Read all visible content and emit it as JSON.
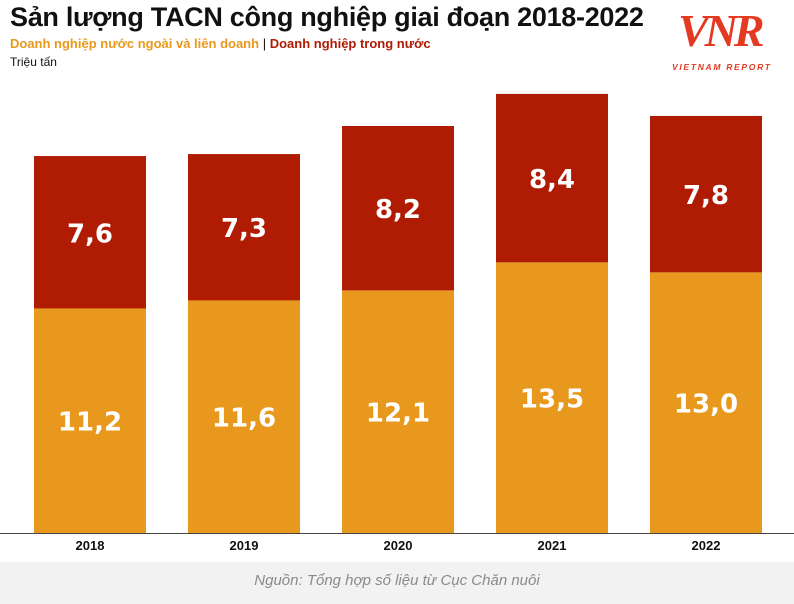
{
  "header": {
    "title": "Sản lượng TACN công nghiệp giai đoạn 2018-2022",
    "unit": "Triệu tấn"
  },
  "logo": {
    "mark": "VNR",
    "sub": "VIETNAM REPORT"
  },
  "colors": {
    "foreign": "#e8981d",
    "domestic": "#b01b04",
    "title": "#111111",
    "axis": "#444444"
  },
  "chart_data": {
    "type": "bar",
    "stacked": true,
    "title": "Sản lượng TACN công nghiệp giai đoạn 2018-2022",
    "ylabel": "Triệu tấn",
    "xlabel": "",
    "categories": [
      "2018",
      "2019",
      "2020",
      "2021",
      "2022"
    ],
    "series": [
      {
        "name": "Doanh nghiệp nước ngoài và liên doanh",
        "values": [
          11.2,
          11.6,
          12.1,
          13.5,
          13.0
        ],
        "labels": [
          "11,2",
          "11,6",
          "12,1",
          "13,5",
          "13,0"
        ]
      },
      {
        "name": "Doanh nghiệp trong nước",
        "values": [
          7.6,
          7.3,
          8.2,
          8.4,
          7.8
        ],
        "labels": [
          "7,6",
          "7,3",
          "8,2",
          "8,4",
          "7,8"
        ]
      }
    ],
    "ylim": [
      0,
      22
    ],
    "grid": false,
    "legend": "top-left"
  },
  "footer": {
    "source": "Nguồn: Tổng hợp số liệu từ Cục Chăn nuôi"
  }
}
